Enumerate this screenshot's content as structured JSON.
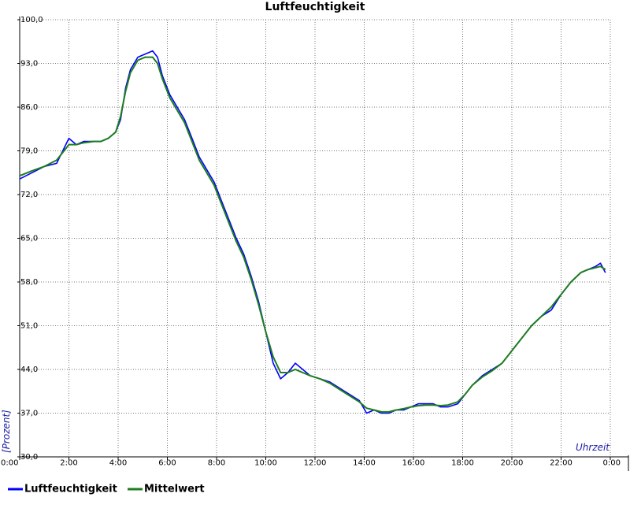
{
  "chart_data": {
    "type": "line",
    "title": "Luftfeuchtigkeit",
    "xlabel": "Uhrzeit",
    "ylabel": "[Prozent]",
    "ylim": [
      30.0,
      100.0
    ],
    "xlim": [
      0,
      24
    ],
    "y_ticks": [
      "30,0",
      "37,0",
      "44,0",
      "51,0",
      "58,0",
      "65,0",
      "72,0",
      "79,0",
      "86,0",
      "93,0",
      "100,0"
    ],
    "x_ticks": [
      "0:00",
      "2:00",
      "4:00",
      "6:00",
      "8:00",
      "10:00",
      "12:00",
      "14:00",
      "16:00",
      "18:00",
      "20:00",
      "22:00",
      "0:00"
    ],
    "grid": true,
    "legend_position": "bottom-left",
    "series": [
      {
        "name": "Luftfeuchtigkeit",
        "color": "#0000ff",
        "x": [
          0,
          0.5,
          1.0,
          1.5,
          2.0,
          2.3,
          2.6,
          3.0,
          3.3,
          3.6,
          3.9,
          4.1,
          4.3,
          4.5,
          4.8,
          5.1,
          5.4,
          5.6,
          5.8,
          6.1,
          6.4,
          6.7,
          7.0,
          7.3,
          7.6,
          7.9,
          8.2,
          8.5,
          8.8,
          9.1,
          9.4,
          9.7,
          10.0,
          10.3,
          10.6,
          10.9,
          11.2,
          11.5,
          11.8,
          12.2,
          12.6,
          13.0,
          13.4,
          13.8,
          14.1,
          14.4,
          14.7,
          15.0,
          15.3,
          15.6,
          15.9,
          16.2,
          16.5,
          16.8,
          17.1,
          17.4,
          17.8,
          18.1,
          18.4,
          18.8,
          19.2,
          19.6,
          20.0,
          20.4,
          20.8,
          21.2,
          21.6,
          22.0,
          22.4,
          22.8,
          23.1,
          23.4,
          23.6,
          23.8
        ],
        "y": [
          74.5,
          75.5,
          76.5,
          77.0,
          81.0,
          80.0,
          80.5,
          80.5,
          80.5,
          81.0,
          82.0,
          84.0,
          89.0,
          92.0,
          94.0,
          94.5,
          95.0,
          94.0,
          91.0,
          88.0,
          86.0,
          84.0,
          81.0,
          78.0,
          76.0,
          74.0,
          71.0,
          68.0,
          65.0,
          62.5,
          59.0,
          55.0,
          50.0,
          45.0,
          42.5,
          43.5,
          45.0,
          44.0,
          43.0,
          42.5,
          42.0,
          41.0,
          40.0,
          39.0,
          37.0,
          37.5,
          37.0,
          37.0,
          37.5,
          37.5,
          38.0,
          38.5,
          38.5,
          38.5,
          38.0,
          38.0,
          38.5,
          40.0,
          41.5,
          43.0,
          44.0,
          45.0,
          47.0,
          49.0,
          51.0,
          52.5,
          53.5,
          56.0,
          58.0,
          59.5,
          60.0,
          60.5,
          61.0,
          59.5
        ]
      },
      {
        "name": "Mittelwert",
        "color": "#1e7d1e",
        "x": [
          0,
          0.5,
          1.0,
          1.5,
          2.0,
          2.3,
          2.6,
          3.0,
          3.3,
          3.6,
          3.9,
          4.1,
          4.3,
          4.5,
          4.8,
          5.1,
          5.4,
          5.6,
          5.8,
          6.1,
          6.4,
          6.7,
          7.0,
          7.3,
          7.6,
          7.9,
          8.2,
          8.5,
          8.8,
          9.1,
          9.4,
          9.7,
          10.0,
          10.3,
          10.6,
          10.9,
          11.2,
          11.5,
          11.8,
          12.2,
          12.6,
          13.0,
          13.4,
          13.8,
          14.1,
          14.4,
          14.7,
          15.0,
          15.3,
          15.6,
          15.9,
          16.2,
          16.5,
          16.8,
          17.1,
          17.4,
          17.8,
          18.1,
          18.4,
          18.8,
          19.2,
          19.6,
          20.0,
          20.4,
          20.8,
          21.2,
          21.6,
          22.0,
          22.4,
          22.8,
          23.1,
          23.4,
          23.6,
          23.8
        ],
        "y": [
          75.0,
          75.8,
          76.5,
          77.5,
          80.0,
          80.0,
          80.3,
          80.5,
          80.5,
          81.0,
          82.0,
          84.5,
          88.5,
          91.5,
          93.5,
          94.0,
          94.0,
          93.0,
          90.5,
          87.5,
          85.5,
          83.5,
          80.5,
          77.5,
          75.5,
          73.5,
          70.5,
          67.5,
          64.5,
          62.0,
          58.5,
          54.5,
          50.0,
          46.0,
          43.5,
          43.5,
          44.0,
          43.5,
          43.0,
          42.5,
          41.8,
          40.8,
          39.8,
          38.8,
          37.8,
          37.5,
          37.2,
          37.2,
          37.5,
          37.7,
          38.0,
          38.2,
          38.3,
          38.3,
          38.2,
          38.3,
          38.8,
          40.0,
          41.5,
          42.8,
          43.8,
          45.0,
          47.0,
          49.0,
          51.0,
          52.5,
          54.0,
          56.0,
          58.0,
          59.5,
          60.0,
          60.3,
          60.5,
          60.0
        ]
      }
    ]
  }
}
